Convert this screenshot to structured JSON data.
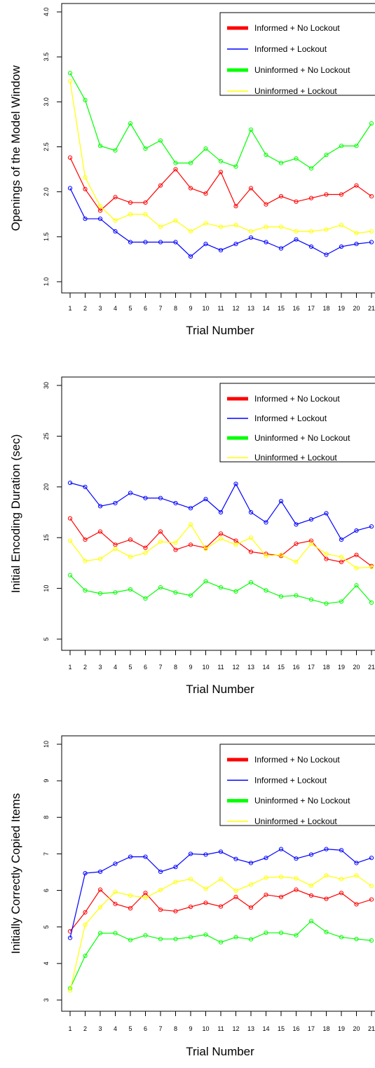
{
  "legend": {
    "entries": [
      {
        "label": "Informed + No Lockout",
        "color": "#ff0000",
        "thick": true
      },
      {
        "label": "Informed + Lockout",
        "color": "#0000ff",
        "thick": false
      },
      {
        "label": "Uninformed + No Lockout",
        "color": "#00ff00",
        "thick": true
      },
      {
        "label": "Uninformed + Lockout",
        "color": "#ffff00",
        "thick": false
      }
    ]
  },
  "chart_data": [
    {
      "type": "line",
      "title": "",
      "xlabel": "Trial Number",
      "ylabel": "Openings of the Model Window",
      "x": [
        1,
        2,
        3,
        4,
        5,
        6,
        7,
        8,
        9,
        10,
        11,
        12,
        13,
        14,
        15,
        16,
        17,
        18,
        19,
        20,
        21
      ],
      "xlim": [
        1,
        21
      ],
      "ylim": [
        1.0,
        4.0
      ],
      "yticks": [
        "1.0",
        "1.5",
        "2.0",
        "2.5",
        "3.0",
        "3.5",
        "4.0"
      ],
      "ytick_values": [
        1.0,
        1.5,
        2.0,
        2.5,
        3.0,
        3.5,
        4.0
      ],
      "legend_position": "top-right",
      "grid": false,
      "series": [
        {
          "name": "Informed + No Lockout",
          "color": "#ff0000",
          "values": [
            2.38,
            2.03,
            1.79,
            1.94,
            1.88,
            1.88,
            2.07,
            2.25,
            2.04,
            1.98,
            2.22,
            1.84,
            2.04,
            1.86,
            1.95,
            1.89,
            1.93,
            1.97,
            1.97,
            2.07,
            1.95
          ]
        },
        {
          "name": "Informed + Lockout",
          "color": "#0000ff",
          "values": [
            2.04,
            1.7,
            1.7,
            1.56,
            1.44,
            1.44,
            1.44,
            1.44,
            1.28,
            1.42,
            1.35,
            1.42,
            1.49,
            1.44,
            1.37,
            1.47,
            1.39,
            1.3,
            1.39,
            1.42,
            1.44
          ]
        },
        {
          "name": "Uninformed + No Lockout",
          "color": "#00ff00",
          "values": [
            3.32,
            3.02,
            2.51,
            2.46,
            2.76,
            2.48,
            2.57,
            2.32,
            2.32,
            2.48,
            2.34,
            2.28,
            2.69,
            2.41,
            2.32,
            2.37,
            2.26,
            2.41,
            2.51,
            2.51,
            2.76
          ]
        },
        {
          "name": "Uninformed + Lockout",
          "color": "#ffff00",
          "values": [
            3.23,
            2.16,
            1.84,
            1.68,
            1.75,
            1.75,
            1.61,
            1.68,
            1.56,
            1.65,
            1.61,
            1.63,
            1.56,
            1.61,
            1.61,
            1.56,
            1.56,
            1.58,
            1.63,
            1.54,
            1.56
          ]
        }
      ]
    },
    {
      "type": "line",
      "title": "",
      "xlabel": "Trial Number",
      "ylabel": "Initial Encoding Duration (sec)",
      "x": [
        1,
        2,
        3,
        4,
        5,
        6,
        7,
        8,
        9,
        10,
        11,
        12,
        13,
        14,
        15,
        16,
        17,
        18,
        19,
        20,
        21
      ],
      "xlim": [
        1,
        21
      ],
      "ylim": [
        5,
        30
      ],
      "yticks": [
        "5",
        "10",
        "15",
        "20",
        "25",
        "30"
      ],
      "ytick_values": [
        5,
        10,
        15,
        20,
        25,
        30
      ],
      "legend_position": "top-right",
      "grid": false,
      "series": [
        {
          "name": "Informed + No Lockout",
          "color": "#ff0000",
          "values": [
            16.9,
            14.8,
            15.6,
            14.3,
            14.8,
            14.0,
            15.6,
            13.8,
            14.3,
            14.0,
            15.4,
            14.7,
            13.6,
            13.4,
            13.2,
            14.4,
            14.7,
            12.9,
            12.6,
            13.3,
            12.2
          ]
        },
        {
          "name": "Informed + Lockout",
          "color": "#0000ff",
          "values": [
            20.4,
            20.0,
            18.1,
            18.4,
            19.4,
            18.9,
            18.9,
            18.4,
            17.9,
            18.8,
            17.5,
            20.3,
            17.5,
            16.5,
            18.6,
            16.3,
            16.8,
            17.4,
            14.8,
            15.7,
            16.1
          ]
        },
        {
          "name": "Uninformed + No Lockout",
          "color": "#00ff00",
          "values": [
            11.3,
            9.8,
            9.5,
            9.6,
            9.9,
            9.0,
            10.1,
            9.6,
            9.3,
            10.7,
            10.1,
            9.7,
            10.6,
            9.8,
            9.2,
            9.3,
            8.9,
            8.5,
            8.7,
            10.3,
            8.6
          ]
        },
        {
          "name": "Uninformed + Lockout",
          "color": "#ffff00",
          "values": [
            14.7,
            12.7,
            12.9,
            13.9,
            13.1,
            13.5,
            14.6,
            14.5,
            16.3,
            13.9,
            14.9,
            14.3,
            15.0,
            13.2,
            13.3,
            12.6,
            14.4,
            13.4,
            13.1,
            12.0,
            12.1
          ]
        }
      ]
    },
    {
      "type": "line",
      "title": "",
      "xlabel": "Trial Number",
      "ylabel": "Initially Correctly Copied Items",
      "x": [
        1,
        2,
        3,
        4,
        5,
        6,
        7,
        8,
        9,
        10,
        11,
        12,
        13,
        14,
        15,
        16,
        17,
        18,
        19,
        20,
        21
      ],
      "xlim": [
        1,
        21
      ],
      "ylim": [
        3,
        10
      ],
      "yticks": [
        "3",
        "4",
        "5",
        "6",
        "7",
        "8",
        "9",
        "10"
      ],
      "ytick_values": [
        3,
        4,
        5,
        6,
        7,
        8,
        9,
        10
      ],
      "legend_position": "top-right",
      "grid": false,
      "series": [
        {
          "name": "Informed + No Lockout",
          "color": "#ff0000",
          "values": [
            4.88,
            5.4,
            6.02,
            5.63,
            5.51,
            5.93,
            5.47,
            5.43,
            5.55,
            5.66,
            5.56,
            5.82,
            5.53,
            5.88,
            5.82,
            6.02,
            5.86,
            5.77,
            5.93,
            5.62,
            5.75
          ]
        },
        {
          "name": "Informed + Lockout",
          "color": "#0000ff",
          "values": [
            4.7,
            6.47,
            6.51,
            6.73,
            6.92,
            6.92,
            6.51,
            6.64,
            7.0,
            6.98,
            7.06,
            6.86,
            6.75,
            6.89,
            7.13,
            6.87,
            6.98,
            7.13,
            7.1,
            6.75,
            6.89
          ]
        },
        {
          "name": "Uninformed + No Lockout",
          "color": "#00ff00",
          "values": [
            3.32,
            4.21,
            4.83,
            4.83,
            4.64,
            4.77,
            4.67,
            4.67,
            4.72,
            4.79,
            4.58,
            4.72,
            4.66,
            4.84,
            4.84,
            4.77,
            5.16,
            4.86,
            4.72,
            4.67,
            4.63
          ]
        },
        {
          "name": "Uninformed + Lockout",
          "color": "#ffff00",
          "values": [
            3.26,
            5.06,
            5.54,
            5.96,
            5.86,
            5.8,
            6.01,
            6.23,
            6.31,
            6.04,
            6.31,
            5.99,
            6.16,
            6.35,
            6.37,
            6.33,
            6.13,
            6.41,
            6.31,
            6.41,
            6.12
          ]
        }
      ]
    }
  ]
}
